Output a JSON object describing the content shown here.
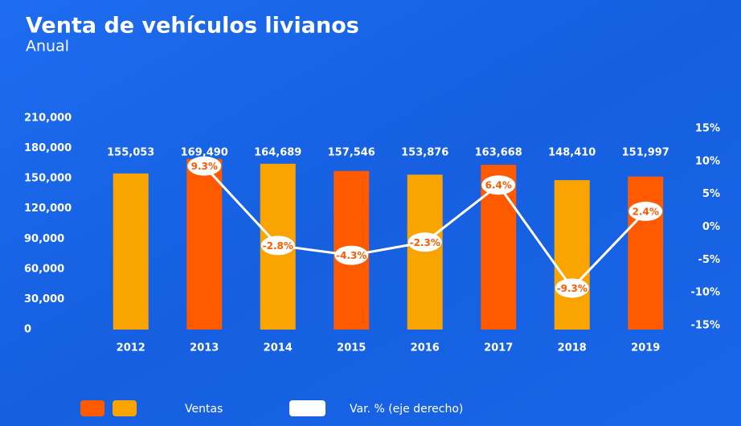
{
  "chart_data": {
    "type": "bar-line",
    "title": "Venta de vehículos livianos",
    "subtitle": "Anual",
    "categories": [
      "2012",
      "2013",
      "2014",
      "2015",
      "2016",
      "2017",
      "2018",
      "2019"
    ],
    "series": [
      {
        "name": "Ventas",
        "type": "bar",
        "colors": [
          "#f9a400",
          "#ff5a00",
          "#f9a400",
          "#ff5a00",
          "#f9a400",
          "#ff5a00",
          "#f9a400",
          "#ff5a00"
        ],
        "values": [
          155053,
          169490,
          164689,
          157546,
          153876,
          163668,
          148410,
          151997
        ],
        "value_labels": [
          "155,053",
          "169,490",
          "164,689",
          "157,546",
          "153,876",
          "163,668",
          "148,410",
          "151,997"
        ]
      },
      {
        "name": "Var. % (eje derecho)",
        "type": "line",
        "axis": "y2",
        "color": "#ffffff",
        "values": [
          null,
          9.3,
          -2.8,
          -4.3,
          -2.3,
          6.4,
          -9.3,
          2.4
        ],
        "value_labels": [
          null,
          "9.3%",
          "-2.8%",
          "-4.3%",
          "-2.3%",
          "6.4%",
          "-9.3%",
          "2.4%"
        ]
      }
    ],
    "ylim": [
      0,
      210000
    ],
    "yticks": [
      0,
      {
        "value": 30000,
        "label": "30,000"
      },
      {
        "value": 60000,
        "label": "60,000"
      },
      {
        "value": 90000,
        "label": "90,000"
      },
      {
        "value": 120000,
        "label": "120,000"
      },
      {
        "value": 150000,
        "label": "150,000"
      },
      {
        "value": 180000,
        "label": "180,000"
      },
      {
        "value": 210000,
        "label": "210,000"
      }
    ],
    "y2lim": [
      -15,
      15
    ],
    "y2ticks": [
      {
        "value": -15,
        "label": "-15%"
      },
      {
        "value": -10,
        "label": "-10%"
      },
      {
        "value": -5,
        "label": "-5%"
      },
      {
        "value": 0,
        "label": "0%"
      },
      {
        "value": 5,
        "label": "5%"
      },
      {
        "value": 10,
        "label": "10%"
      },
      {
        "value": 15,
        "label": "15%"
      }
    ]
  }
}
